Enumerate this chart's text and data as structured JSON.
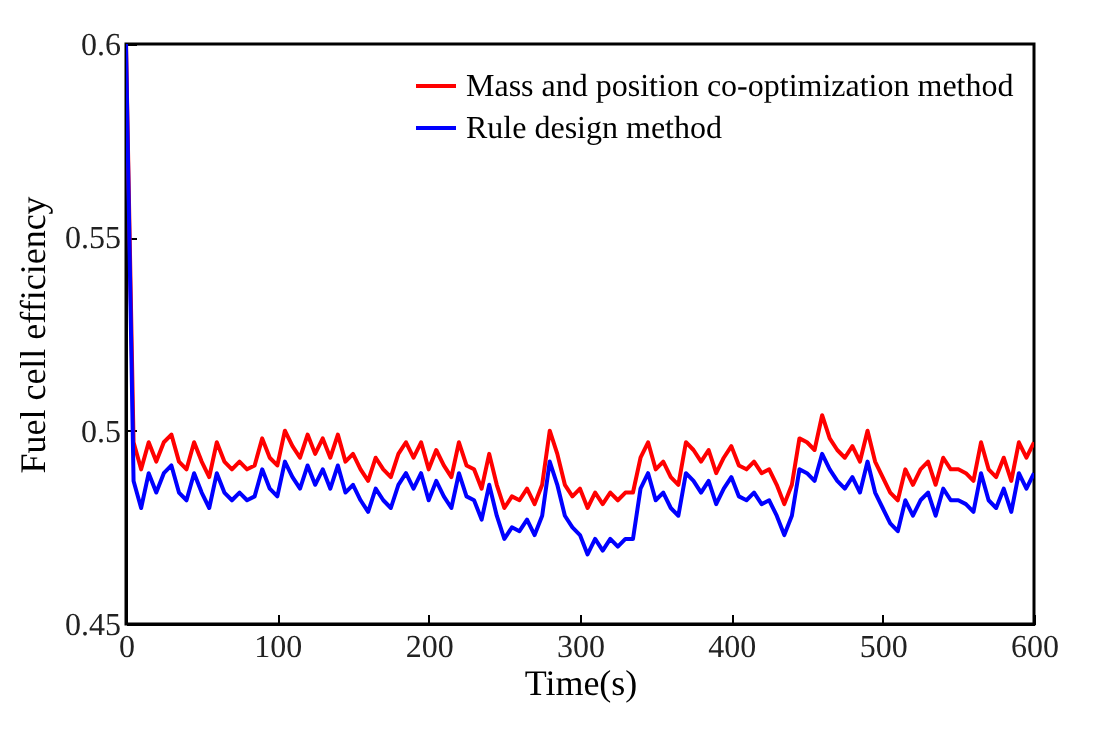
{
  "chart_data": {
    "type": "line",
    "xlabel": "Time(s)",
    "ylabel": "Fuel cell efficiency",
    "xlim": [
      0,
      600
    ],
    "xticks": [
      0,
      100,
      200,
      300,
      400,
      500,
      600
    ],
    "ylim": [
      0.45,
      0.6
    ],
    "yticks": [
      0.45,
      0.5,
      0.55,
      0.6
    ],
    "grid": false,
    "legend": "top right",
    "marker": "none",
    "line_style": "solid",
    "series": [
      {
        "name": "Mass and position co-optimization method",
        "color": "#ff0000",
        "x": [
          0,
          5,
          10,
          15,
          20,
          25,
          30,
          35,
          40,
          45,
          50,
          55,
          60,
          65,
          70,
          75,
          80,
          85,
          90,
          95,
          100,
          105,
          110,
          115,
          120,
          125,
          130,
          135,
          140,
          145,
          150,
          155,
          160,
          165,
          170,
          175,
          180,
          185,
          190,
          195,
          200,
          205,
          210,
          215,
          220,
          225,
          230,
          235,
          240,
          245,
          250,
          255,
          260,
          265,
          270,
          275,
          280,
          285,
          290,
          295,
          300,
          305,
          310,
          315,
          320,
          325,
          330,
          335,
          340,
          345,
          350,
          355,
          360,
          365,
          370,
          375,
          380,
          385,
          390,
          395,
          400,
          405,
          410,
          415,
          420,
          425,
          430,
          435,
          440,
          445,
          450,
          455,
          460,
          465,
          470,
          475,
          480,
          485,
          490,
          495,
          500,
          505,
          510,
          515,
          520,
          525,
          530,
          535,
          540,
          545,
          550,
          555,
          560,
          565,
          570,
          575,
          580,
          585,
          590,
          595,
          600
        ],
        "values": [
          0.6,
          0.497,
          0.49,
          0.497,
          0.492,
          0.497,
          0.499,
          0.492,
          0.49,
          0.497,
          0.492,
          0.488,
          0.497,
          0.492,
          0.49,
          0.492,
          0.49,
          0.491,
          0.498,
          0.493,
          0.491,
          0.5,
          0.496,
          0.493,
          0.499,
          0.494,
          0.498,
          0.493,
          0.499,
          0.492,
          0.494,
          0.49,
          0.487,
          0.493,
          0.49,
          0.488,
          0.494,
          0.497,
          0.493,
          0.497,
          0.49,
          0.495,
          0.491,
          0.488,
          0.497,
          0.491,
          0.49,
          0.485,
          0.494,
          0.486,
          0.48,
          0.483,
          0.482,
          0.485,
          0.481,
          0.486,
          0.5,
          0.494,
          0.486,
          0.483,
          0.485,
          0.48,
          0.484,
          0.481,
          0.484,
          0.482,
          0.484,
          0.484,
          0.493,
          0.497,
          0.49,
          0.492,
          0.488,
          0.486,
          0.497,
          0.495,
          0.492,
          0.495,
          0.489,
          0.493,
          0.496,
          0.491,
          0.49,
          0.492,
          0.489,
          0.49,
          0.486,
          0.481,
          0.486,
          0.498,
          0.497,
          0.495,
          0.504,
          0.498,
          0.495,
          0.493,
          0.496,
          0.492,
          0.5,
          0.492,
          0.488,
          0.484,
          0.482,
          0.49,
          0.486,
          0.49,
          0.492,
          0.486,
          0.493,
          0.49,
          0.49,
          0.489,
          0.487,
          0.497,
          0.49,
          0.488,
          0.493,
          0.487,
          0.497,
          0.493,
          0.497
        ]
      },
      {
        "name": "Rule design method",
        "color": "#0000ff",
        "x": [
          0,
          5,
          10,
          15,
          20,
          25,
          30,
          35,
          40,
          45,
          50,
          55,
          60,
          65,
          70,
          75,
          80,
          85,
          90,
          95,
          100,
          105,
          110,
          115,
          120,
          125,
          130,
          135,
          140,
          145,
          150,
          155,
          160,
          165,
          170,
          175,
          180,
          185,
          190,
          195,
          200,
          205,
          210,
          215,
          220,
          225,
          230,
          235,
          240,
          245,
          250,
          255,
          260,
          265,
          270,
          275,
          280,
          285,
          290,
          295,
          300,
          305,
          310,
          315,
          320,
          325,
          330,
          335,
          340,
          345,
          350,
          355,
          360,
          365,
          370,
          375,
          380,
          385,
          390,
          395,
          400,
          405,
          410,
          415,
          420,
          425,
          430,
          435,
          440,
          445,
          450,
          455,
          460,
          465,
          470,
          475,
          480,
          485,
          490,
          495,
          500,
          505,
          510,
          515,
          520,
          525,
          530,
          535,
          540,
          545,
          550,
          555,
          560,
          565,
          570,
          575,
          580,
          585,
          590,
          595,
          600
        ],
        "values": [
          0.6,
          0.487,
          0.48,
          0.489,
          0.484,
          0.489,
          0.491,
          0.484,
          0.482,
          0.489,
          0.484,
          0.48,
          0.489,
          0.484,
          0.482,
          0.484,
          0.482,
          0.483,
          0.49,
          0.485,
          0.483,
          0.492,
          0.488,
          0.485,
          0.491,
          0.486,
          0.49,
          0.485,
          0.491,
          0.484,
          0.486,
          0.482,
          0.479,
          0.485,
          0.482,
          0.48,
          0.486,
          0.489,
          0.485,
          0.489,
          0.482,
          0.487,
          0.483,
          0.48,
          0.489,
          0.483,
          0.482,
          0.477,
          0.486,
          0.478,
          0.472,
          0.475,
          0.474,
          0.477,
          0.473,
          0.478,
          0.492,
          0.486,
          0.478,
          0.475,
          0.473,
          0.468,
          0.472,
          0.469,
          0.472,
          0.47,
          0.472,
          0.472,
          0.485,
          0.489,
          0.482,
          0.484,
          0.48,
          0.478,
          0.489,
          0.487,
          0.484,
          0.487,
          0.481,
          0.485,
          0.488,
          0.483,
          0.482,
          0.484,
          0.481,
          0.482,
          0.478,
          0.473,
          0.478,
          0.49,
          0.489,
          0.487,
          0.494,
          0.49,
          0.487,
          0.485,
          0.488,
          0.484,
          0.492,
          0.484,
          0.48,
          0.476,
          0.474,
          0.482,
          0.478,
          0.482,
          0.484,
          0.478,
          0.485,
          0.482,
          0.482,
          0.481,
          0.479,
          0.489,
          0.482,
          0.48,
          0.485,
          0.479,
          0.489,
          0.485,
          0.489
        ]
      }
    ]
  }
}
